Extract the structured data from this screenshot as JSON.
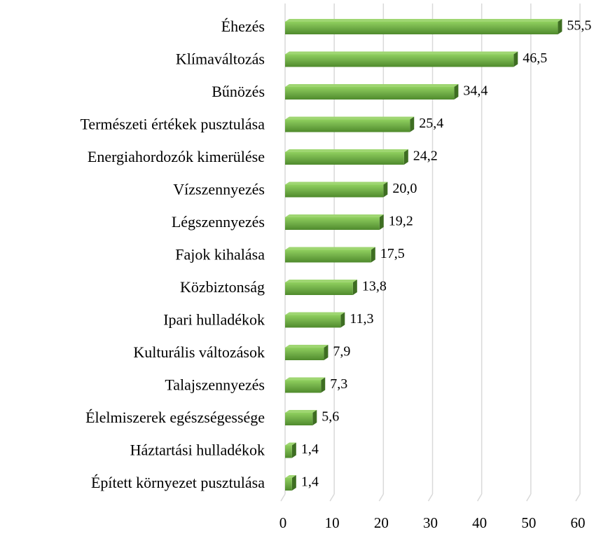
{
  "chart_data": {
    "type": "bar",
    "orientation": "horizontal",
    "categories": [
      "Éhezés",
      "Klímaváltozás",
      "Bűnözés",
      "Természeti értékek pusztulása",
      "Energiahordozók kimerülése",
      "Vízszennyezés",
      "Légszennyezés",
      "Fajok kihalása",
      "Közbiztonság",
      "Ipari hulladékok",
      "Kulturális változások",
      "Talajszennyezés",
      "Élelmiszerek egészségessége",
      "Háztartási hulladékok",
      "Épített környezet pusztulása"
    ],
    "values": [
      55.5,
      46.5,
      34.4,
      25.4,
      24.2,
      20.0,
      19.2,
      17.5,
      13.8,
      11.3,
      7.9,
      7.3,
      5.6,
      1.4,
      1.4
    ],
    "value_labels": [
      "55,5",
      "46,5",
      "34,4",
      "25,4",
      "24,2",
      "20,0",
      "19,2",
      "17,5",
      "13,8",
      "11,3",
      "7,9",
      "7,3",
      "5,6",
      "1,4",
      "1,4"
    ],
    "color": "#70ad47",
    "xlim": [
      0,
      60
    ],
    "xticks": [
      0,
      10,
      20,
      30,
      40,
      50,
      60
    ],
    "grid": true
  }
}
